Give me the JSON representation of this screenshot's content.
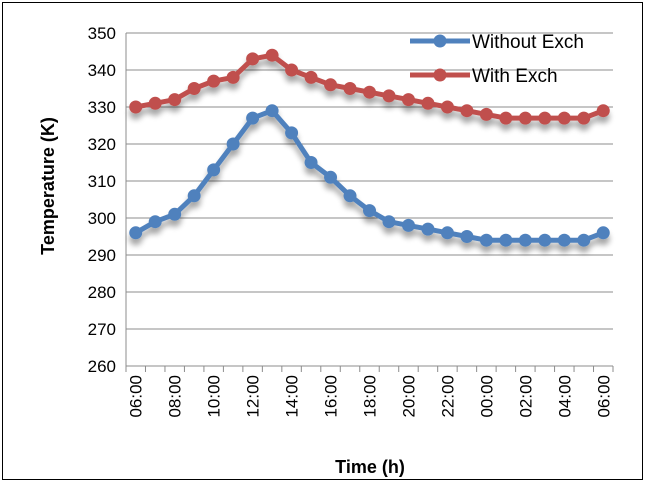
{
  "chart_data": {
    "type": "line",
    "title": "",
    "xlabel": "Time (h)",
    "ylabel": "Temperature (K)",
    "ylim": [
      260,
      350
    ],
    "y_ticks": [
      260,
      270,
      280,
      290,
      300,
      310,
      320,
      330,
      340,
      350
    ],
    "x_tick_labels": [
      "06:00",
      "08:00",
      "10:00",
      "12:00",
      "14:00",
      "16:00",
      "18:00",
      "20:00",
      "22:00",
      "00:00",
      "02:00",
      "04:00",
      "06:00"
    ],
    "x": [
      "06:00",
      "07:00",
      "08:00",
      "09:00",
      "10:00",
      "11:00",
      "12:00",
      "13:00",
      "14:00",
      "15:00",
      "16:00",
      "17:00",
      "18:00",
      "19:00",
      "20:00",
      "21:00",
      "22:00",
      "23:00",
      "00:00",
      "01:00",
      "02:00",
      "03:00",
      "04:00",
      "05:00",
      "06:00"
    ],
    "grid": true,
    "legend_position": "top-right",
    "series": [
      {
        "name": "Without Exch",
        "color": "#4f81bd",
        "values": [
          296,
          299,
          301,
          306,
          313,
          320,
          327,
          329,
          323,
          315,
          311,
          306,
          302,
          299,
          298,
          297,
          296,
          295,
          294,
          294,
          294,
          294,
          294,
          294,
          296
        ]
      },
      {
        "name": "With Exch",
        "color": "#c0504d",
        "values": [
          330,
          331,
          332,
          335,
          337,
          338,
          343,
          344,
          340,
          338,
          336,
          335,
          334,
          333,
          332,
          331,
          330,
          329,
          328,
          327,
          327,
          327,
          327,
          327,
          329
        ]
      }
    ]
  }
}
